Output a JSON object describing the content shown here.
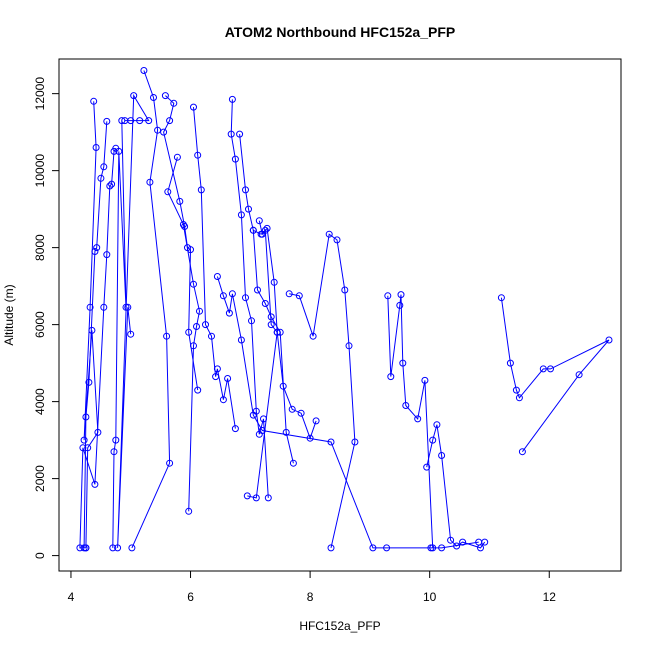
{
  "chart_data": {
    "type": "line",
    "title": "ATOM2 Northbound HFC152a_PFP",
    "xlabel": "HFC152a_PFP",
    "ylabel": "Altitude (m)",
    "xlim": [
      3.8,
      13.2
    ],
    "ylim": [
      -400,
      12900
    ],
    "x_ticks": [
      4,
      6,
      8,
      10,
      12
    ],
    "y_ticks": [
      0,
      2000,
      4000,
      6000,
      8000,
      10000,
      12000
    ],
    "x_tick_labels": [
      "4",
      "6",
      "8",
      "10",
      "12"
    ],
    "y_tick_labels": [
      "0",
      "2000",
      "4000",
      "6000",
      "8000",
      "10000",
      "12000"
    ],
    "grid": false,
    "legend": "none",
    "series_color": "#0000ff",
    "series": [
      {
        "x": [
          4.38,
          4.42,
          4.32,
          4.22,
          4.35,
          4.45,
          4.28,
          4.25
        ],
        "y": [
          11800,
          10600,
          6450,
          3000,
          5850,
          3200,
          2800,
          200
        ]
      },
      {
        "x": [
          4.6,
          4.55,
          4.5,
          4.43,
          4.4,
          4.3,
          4.25,
          4.22
        ],
        "y": [
          11280,
          10100,
          9800,
          8000,
          7900,
          4500,
          3600,
          200
        ]
      },
      {
        "x": [
          4.75,
          4.72,
          4.68,
          4.65,
          4.6,
          4.55,
          4.4,
          4.2,
          4.15,
          4.25
        ],
        "y": [
          10580,
          10500,
          9650,
          9600,
          7820,
          6450,
          1850,
          2800,
          200,
          200
        ]
      },
      {
        "x": [
          4.85,
          4.92,
          4.8,
          4.75,
          4.72,
          4.7
        ],
        "y": [
          11300,
          6450,
          10500,
          3000,
          2700,
          200
        ]
      },
      {
        "x": [
          5.0,
          4.9,
          5.15,
          5.3,
          5.05,
          4.78,
          4.95,
          5.0
        ],
        "y": [
          11300,
          11300,
          11300,
          11300,
          11950,
          200,
          6450,
          5750
        ]
      },
      {
        "x": [
          5.22,
          5.38,
          5.45,
          5.32,
          5.6,
          5.65,
          5.02
        ],
        "y": [
          12600,
          11900,
          11050,
          9700,
          5700,
          2400,
          200
        ]
      },
      {
        "x": [
          5.58,
          5.72,
          5.65,
          5.55,
          5.82,
          5.9,
          5.95,
          6.0,
          5.97,
          6.12
        ],
        "y": [
          11950,
          11750,
          11300,
          11000,
          9200,
          8550,
          8000,
          7950,
          5800,
          4300
        ]
      },
      {
        "x": [
          5.78,
          5.62,
          5.88,
          6.05,
          6.15,
          6.1,
          6.05,
          5.97
        ],
        "y": [
          10350,
          9450,
          8600,
          7050,
          6350,
          5950,
          5450,
          1150
        ]
      },
      {
        "x": [
          6.05,
          6.12,
          6.18,
          6.25,
          6.35,
          6.42,
          6.45,
          6.55,
          6.62,
          6.75
        ],
        "y": [
          11650,
          10400,
          9500,
          6000,
          5700,
          4650,
          4850,
          4050,
          4600,
          3300
        ]
      },
      {
        "x": [
          6.7,
          6.68,
          6.75,
          6.85,
          6.92,
          7.02,
          7.1,
          7.15,
          7.22,
          7.3
        ],
        "y": [
          11850,
          10950,
          10300,
          8850,
          6700,
          6100,
          3750,
          3150,
          3550,
          1500
        ]
      },
      {
        "x": [
          6.82,
          6.92,
          6.97,
          7.05,
          7.12,
          7.25,
          7.35,
          7.5,
          7.6,
          7.72
        ],
        "y": [
          10950,
          9500,
          9000,
          8450,
          6900,
          6550,
          6200,
          5800,
          3200,
          2400
        ]
      },
      {
        "x": [
          7.15,
          7.2,
          7.25,
          7.35,
          7.45,
          7.55,
          7.7,
          7.85,
          8.0,
          8.1
        ],
        "y": [
          8700,
          8350,
          8450,
          6000,
          5800,
          4400,
          3800,
          3700,
          3050,
          3500
        ]
      },
      {
        "x": [
          7.05,
          7.18,
          7.28,
          7.4,
          7.45,
          7.1,
          6.95
        ],
        "y": [
          8450,
          8350,
          8500,
          7100,
          5800,
          1500,
          1550
        ]
      },
      {
        "x": [
          7.65,
          7.82,
          8.05,
          8.32,
          8.45,
          8.58,
          8.65,
          8.75,
          8.35
        ],
        "y": [
          6800,
          6750,
          5700,
          8350,
          8200,
          6900,
          5450,
          2950,
          200
        ]
      },
      {
        "x": [
          9.3,
          9.35,
          9.5,
          9.52,
          9.55,
          9.6,
          9.8,
          9.92,
          10.05
        ],
        "y": [
          6750,
          4650,
          6500,
          6780,
          5000,
          3900,
          3550,
          4550,
          200
        ]
      },
      {
        "x": [
          9.95,
          10.05,
          10.12,
          10.2,
          10.35,
          10.45,
          10.55,
          10.85,
          10.92
        ],
        "y": [
          2300,
          3000,
          3400,
          2600,
          400,
          250,
          350,
          200,
          350
        ]
      },
      {
        "x": [
          11.2,
          11.35,
          11.45,
          11.5,
          11.9,
          12.02,
          13.0,
          12.5,
          11.55
        ],
        "y": [
          6700,
          5000,
          4300,
          4100,
          4850,
          4850,
          5600,
          4700,
          2700
        ]
      },
      {
        "x": [
          6.45,
          6.55,
          6.65,
          6.7,
          6.85,
          7.05,
          7.2,
          8.35,
          9.05,
          9.28,
          10.02,
          10.2,
          10.82
        ],
        "y": [
          7250,
          6750,
          6300,
          6800,
          5600,
          3650,
          3250,
          2950,
          200,
          200,
          200,
          200,
          350
        ]
      }
    ]
  }
}
